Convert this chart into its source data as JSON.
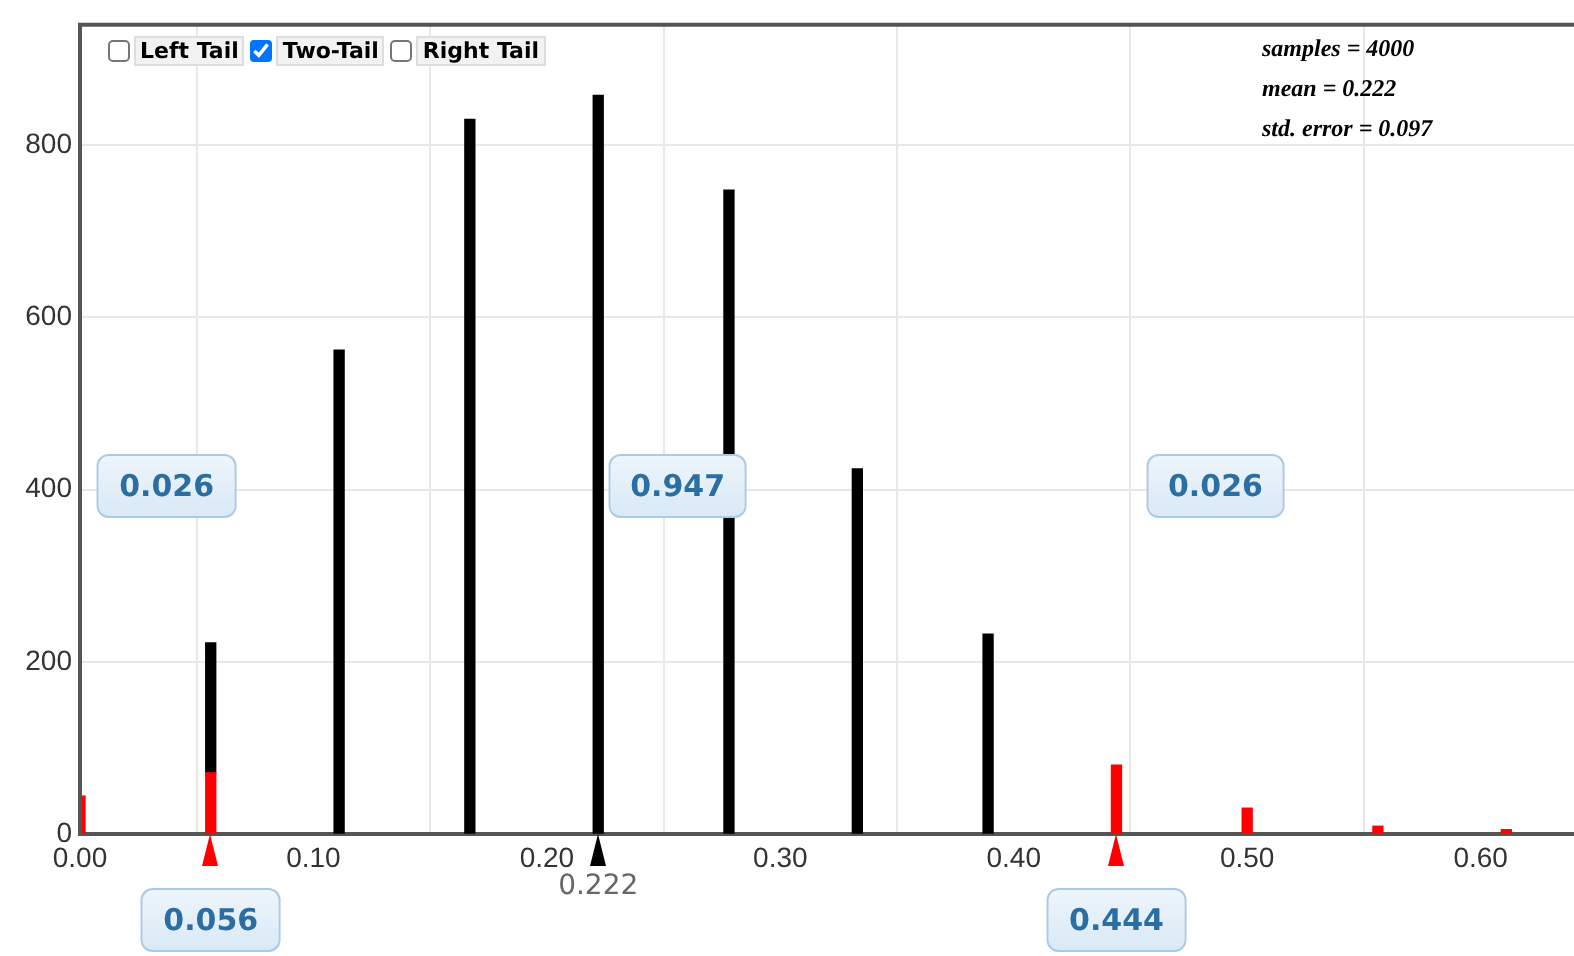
{
  "chart_data": {
    "type": "bar",
    "stacked": true,
    "x": [
      0,
      0.056,
      0.111,
      0.167,
      0.222,
      0.278,
      0.333,
      0.389,
      0.444,
      0.5,
      0.556,
      0.611
    ],
    "series": [
      {
        "color": "#ff0000",
        "values": [
          44,
          71,
          null,
          null,
          null,
          null,
          null,
          null,
          80,
          30,
          9,
          5
        ]
      },
      {
        "color": "#000000",
        "values": [
          null,
          151,
          562,
          830,
          858,
          748,
          424,
          232,
          null,
          null,
          null,
          null
        ]
      }
    ],
    "xlim": [
      0,
      0.64
    ],
    "xticks": [
      {
        "value": 0,
        "label": "0.00"
      },
      {
        "value": 0.1,
        "label": "0.10"
      },
      {
        "value": 0.2,
        "label": "0.20"
      },
      {
        "value": 0.3,
        "label": "0.30"
      },
      {
        "value": 0.4,
        "label": "0.40"
      },
      {
        "value": 0.5,
        "label": "0.50"
      },
      {
        "value": 0.6,
        "label": "0.60"
      }
    ],
    "ylim": [
      0,
      940
    ],
    "yticks": [
      0,
      200,
      400,
      600,
      800
    ],
    "grid": true,
    "legend": false,
    "annotations": [
      "Left Tail",
      "Two-Tail",
      "Right Tail",
      "samples = 4000",
      "mean = 0.222",
      "std. error = 0.097",
      "0.026",
      "0.947",
      "0.026",
      "0.222",
      "0.056",
      "0.444"
    ]
  }
}
